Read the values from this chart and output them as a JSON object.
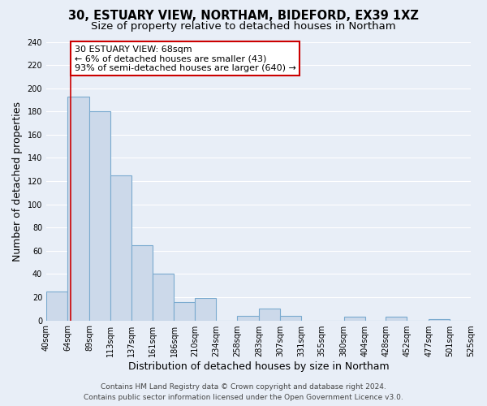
{
  "title_line1": "30, ESTUARY VIEW, NORTHAM, BIDEFORD, EX39 1XZ",
  "title_line2": "Size of property relative to detached houses in Northam",
  "xlabel": "Distribution of detached houses by size in Northam",
  "ylabel": "Number of detached properties",
  "bin_edges": [
    40,
    64,
    89,
    113,
    137,
    161,
    186,
    210,
    234,
    258,
    283,
    307,
    331,
    355,
    380,
    404,
    428,
    452,
    477,
    501,
    525
  ],
  "bar_heights": [
    25,
    193,
    180,
    125,
    65,
    40,
    16,
    19,
    0,
    4,
    10,
    4,
    0,
    0,
    3,
    0,
    3,
    0,
    1,
    0
  ],
  "bar_face_color": "#ccd9ea",
  "bar_edge_color": "#7aaacf",
  "vline_x": 68,
  "vline_color": "#cc0000",
  "ylim": [
    0,
    240
  ],
  "yticks": [
    0,
    20,
    40,
    60,
    80,
    100,
    120,
    140,
    160,
    180,
    200,
    220,
    240
  ],
  "tick_labels": [
    "40sqm",
    "64sqm",
    "89sqm",
    "113sqm",
    "137sqm",
    "161sqm",
    "186sqm",
    "210sqm",
    "234sqm",
    "258sqm",
    "283sqm",
    "307sqm",
    "331sqm",
    "355sqm",
    "380sqm",
    "404sqm",
    "428sqm",
    "452sqm",
    "477sqm",
    "501sqm",
    "525sqm"
  ],
  "annotation_title": "30 ESTUARY VIEW: 68sqm",
  "annotation_line2": "← 6% of detached houses are smaller (43)",
  "annotation_line3": "93% of semi-detached houses are larger (640) →",
  "annotation_box_facecolor": "#ffffff",
  "annotation_box_edgecolor": "#cc0000",
  "footer_line1": "Contains HM Land Registry data © Crown copyright and database right 2024.",
  "footer_line2": "Contains public sector information licensed under the Open Government Licence v3.0.",
  "background_color": "#e8eef7",
  "grid_color": "#ffffff",
  "title_fontsize": 10.5,
  "subtitle_fontsize": 9.5,
  "axis_label_fontsize": 9,
  "tick_fontsize": 7,
  "annotation_fontsize": 8,
  "footer_fontsize": 6.5
}
